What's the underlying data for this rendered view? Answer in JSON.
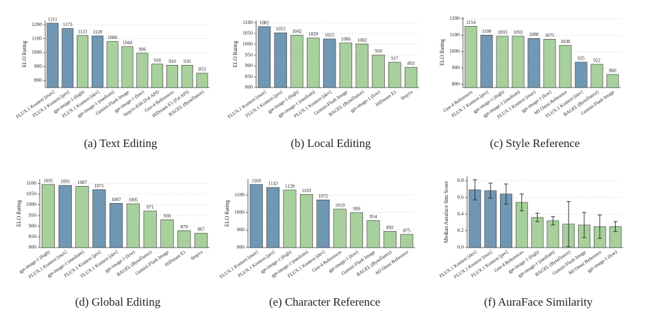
{
  "chart_data": [
    {
      "type": "bar",
      "caption": "(a) Text Editing",
      "ylabel": "ELO Rating",
      "categories": [
        "FLUX.1 Kontext [max]",
        "FLUX.1 Kontext [pro]",
        "gpt-image-1 (high)",
        "FLUX.1 Kontext [dev]",
        "gpt-image-1 (medium)",
        "Gemini-Flash Image",
        "gpt-image-1 (low)",
        "Step1x-Edit (Fal API)",
        "Gen-4 References",
        "HiDream E1 (Fal API)",
        "BAGEL (ByteDance)"
      ],
      "values": [
        1211,
        1173,
        1123,
        1120,
        1080,
        1044,
        996,
        918,
        910,
        910,
        853
      ],
      "colors": [
        "#7097b4",
        "#7097b4",
        "#a8d09c",
        "#7097b4",
        "#a8d09c",
        "#a8d09c",
        "#a8d09c",
        "#a8d09c",
        "#a8d09c",
        "#a8d09c",
        "#a8d09c"
      ],
      "ylim": [
        750,
        1230
      ],
      "yticks": [
        800,
        900,
        1000,
        1100,
        1200
      ],
      "grid": true
    },
    {
      "type": "bar",
      "caption": "(b) Local Editing",
      "ylabel": "ELO Rating",
      "categories": [
        "FLUX.1 Kontext [max]",
        "FLUX.1 Kontext [pro]",
        "gpt-image-1 (high)",
        "gpt-image-1 (medium)",
        "FLUX.1 Kontext [dev]",
        "Gemini-Flash Image",
        "BAGEL (ByteDance)",
        "gpt-image-1 (low)",
        "HiDream E1",
        "Step1x"
      ],
      "values": [
        1082,
        1053,
        1042,
        1029,
        1025,
        1006,
        1002,
        950,
        917,
        893
      ],
      "colors": [
        "#7097b4",
        "#7097b4",
        "#a8d09c",
        "#a8d09c",
        "#7097b4",
        "#a8d09c",
        "#a8d09c",
        "#a8d09c",
        "#a8d09c",
        "#a8d09c"
      ],
      "ylim": [
        800,
        1110
      ],
      "yticks": [
        800,
        850,
        900,
        950,
        1000,
        1050,
        1100
      ],
      "grid": true
    },
    {
      "type": "bar",
      "caption": "(c) Style Reference",
      "ylabel": "ELO Rating",
      "categories": [
        "Gen-4 References",
        "FLUX.1 Kontext [pro]",
        "gpt-image-1 (high)",
        "gpt-image-1 (medium)",
        "FLUX.1 Kontext [max]",
        "gpt-image-1 (low)",
        "MJ Omni Reference",
        "FLUX.1 Kontext [dev]",
        "BAGEL (ByteDance)",
        "Gemini-Flash Image"
      ],
      "values": [
        1154,
        1100,
        1093,
        1093,
        1080,
        1075,
        1038,
        935,
        922,
        860
      ],
      "colors": [
        "#a8d09c",
        "#7097b4",
        "#a8d09c",
        "#a8d09c",
        "#7097b4",
        "#a8d09c",
        "#a8d09c",
        "#7097b4",
        "#a8d09c",
        "#a8d09c"
      ],
      "ylim": [
        780,
        1210
      ],
      "yticks": [
        800,
        900,
        1000,
        1100,
        1200
      ],
      "grid": true
    },
    {
      "type": "bar",
      "caption": "(d) Global Editing",
      "ylabel": "ELO Rating",
      "categories": [
        "gpt-image-1 (high)",
        "FLUX.1 Kontext [max]",
        "gpt-image-1 (medium)",
        "FLUX.1 Kontext [pro]",
        "FLUX.1 Kontext [dev]",
        "gpt-image-1 (low)",
        "BAGEL (ByteDance)",
        "Gemini-Flash Image",
        "HiDream E1",
        "Step1x"
      ],
      "values": [
        1095,
        1091,
        1087,
        1071,
        1007,
        1005,
        971,
        930,
        879,
        867
      ],
      "colors": [
        "#a8d09c",
        "#7097b4",
        "#a8d09c",
        "#7097b4",
        "#7097b4",
        "#a8d09c",
        "#a8d09c",
        "#a8d09c",
        "#a8d09c",
        "#a8d09c"
      ],
      "ylim": [
        800,
        1120
      ],
      "yticks": [
        800,
        850,
        900,
        950,
        1000,
        1050,
        1100
      ],
      "grid": true
    },
    {
      "type": "bar",
      "caption": "(e) Character Reference",
      "ylabel": "ELO Rating",
      "categories": [
        "FLUX.1 Kontext [max]",
        "FLUX.1 Kontext [pro]",
        "gpt-image-1 (high)",
        "gpt-image-1 (medium)",
        "FLUX.1 Kontext [dev]",
        "Gen-4 References",
        "gpt-image-1 (low)",
        "Gemini-Flash Image",
        "BAGEL (ByteDance)",
        "MJ Omni Reference"
      ],
      "values": [
        1160,
        1143,
        1128,
        1103,
        1072,
        1019,
        999,
        954,
        892,
        875
      ],
      "colors": [
        "#7097b4",
        "#7097b4",
        "#a8d09c",
        "#a8d09c",
        "#7097b4",
        "#a8d09c",
        "#a8d09c",
        "#a8d09c",
        "#a8d09c",
        "#a8d09c"
      ],
      "ylim": [
        800,
        1190
      ],
      "yticks": [
        800,
        900,
        1000,
        1100
      ],
      "grid": true
    },
    {
      "type": "errorbar",
      "caption": "(f) AuraFace Similarity",
      "ylabel": "Median Auraface Sim Score",
      "categories": [
        "FLUX.1 Kontext [dev]",
        "FLUX.1 Kontext [max]",
        "FLUX.1 Kontext [pro]",
        "Gen-4 References",
        "gpt-image-1 (high)",
        "gpt-image-1 (medium)",
        "BAGEL (ByteDance)",
        "Gemini-Flash Image",
        "MJ Omni Reference",
        "gpt-image-1 (low)"
      ],
      "values": [
        0.69,
        0.68,
        0.64,
        0.54,
        0.36,
        0.32,
        0.28,
        0.27,
        0.25,
        0.25
      ],
      "errors": [
        0.12,
        0.09,
        0.12,
        0.1,
        0.05,
        0.05,
        0.27,
        0.15,
        0.14,
        0.06
      ],
      "colors": [
        "#7097b4",
        "#7097b4",
        "#7097b4",
        "#a8d09c",
        "#a8d09c",
        "#a8d09c",
        "#a8d09c",
        "#a8d09c",
        "#a8d09c",
        "#a8d09c"
      ],
      "ylim": [
        0,
        0.85
      ],
      "yticks": [
        {
          "value": 0,
          "label": "0.0"
        },
        0.2,
        0.4,
        0.6,
        0.8
      ],
      "grid": true
    }
  ]
}
